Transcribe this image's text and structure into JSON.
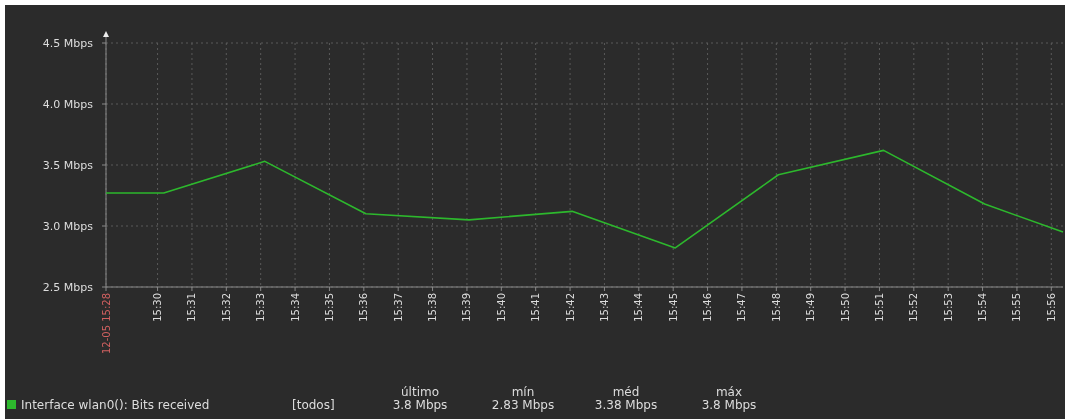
{
  "chart_data": {
    "type": "line",
    "x": [
      15.475,
      15.503,
      15.552,
      15.601,
      15.651,
      15.701,
      15.751,
      15.801,
      15.852,
      15.901,
      15.939
    ],
    "series": [
      {
        "name": "Interface wlan0(): Bits received",
        "color": "#2db82d",
        "values": [
          3.27,
          3.27,
          3.53,
          3.1,
          3.05,
          3.12,
          2.82,
          3.42,
          3.62,
          3.18,
          2.95
        ]
      }
    ],
    "xlim": [
      15.475,
      15.939
    ],
    "xticks": [
      {
        "value": 15.475,
        "label": "12-05 15:28"
      },
      {
        "value": 15.5,
        "label": "15:30"
      },
      {
        "value": 15.51667,
        "label": "15:31"
      },
      {
        "value": 15.53333,
        "label": "15:32"
      },
      {
        "value": 15.55,
        "label": "15:33"
      },
      {
        "value": 15.56667,
        "label": "15:34"
      },
      {
        "value": 15.58333,
        "label": "15:35"
      },
      {
        "value": 15.6,
        "label": "15:36"
      },
      {
        "value": 15.61667,
        "label": "15:37"
      },
      {
        "value": 15.63333,
        "label": "15:38"
      },
      {
        "value": 15.65,
        "label": "15:39"
      },
      {
        "value": 15.66667,
        "label": "15:40"
      },
      {
        "value": 15.68333,
        "label": "15:41"
      },
      {
        "value": 15.7,
        "label": "15:42"
      },
      {
        "value": 15.71667,
        "label": "15:43"
      },
      {
        "value": 15.73333,
        "label": "15:44"
      },
      {
        "value": 15.75,
        "label": "15:45"
      },
      {
        "value": 15.76667,
        "label": "15:46"
      },
      {
        "value": 15.78333,
        "label": "15:47"
      },
      {
        "value": 15.8,
        "label": "15:48"
      },
      {
        "value": 15.81667,
        "label": "15:49"
      },
      {
        "value": 15.83333,
        "label": "15:50"
      },
      {
        "value": 15.85,
        "label": "15:51"
      },
      {
        "value": 15.86667,
        "label": "15:52"
      },
      {
        "value": 15.88333,
        "label": "15:53"
      },
      {
        "value": 15.9,
        "label": "15:54"
      },
      {
        "value": 15.91667,
        "label": "15:55"
      },
      {
        "value": 15.93333,
        "label": "15:56"
      }
    ],
    "ylim": [
      2.5,
      4.5
    ],
    "yticks": [
      {
        "value": 2.5,
        "label": "2.5 Mbps"
      },
      {
        "value": 3.0,
        "label": "3.0 Mbps"
      },
      {
        "value": 3.5,
        "label": "3.5 Mbps"
      },
      {
        "value": 4.0,
        "label": "4.0 Mbps"
      },
      {
        "value": 4.5,
        "label": "4.5 Mbps"
      }
    ],
    "grid": true,
    "line_style": "solid",
    "marker": "none",
    "legend": "bottom left",
    "annotations": [
      "[todos]",
      "último",
      "3.8 Mbps",
      "mín",
      "2.83 Mbps",
      "méd",
      "3.38 Mbps",
      "máx",
      "3.8 Mbps"
    ]
  }
}
